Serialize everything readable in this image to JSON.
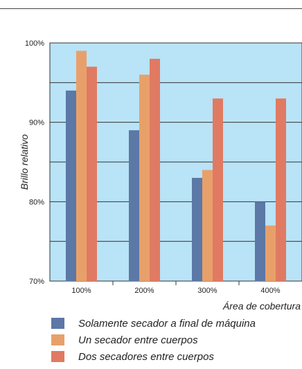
{
  "chart_data": {
    "type": "bar",
    "categories": [
      "100%",
      "200%",
      "300%",
      "400%"
    ],
    "series": [
      {
        "name": "Solamente secador a final de máquina",
        "values": [
          94,
          89,
          83,
          80
        ],
        "color": "#5b78a6"
      },
      {
        "name": "Un secador entre cuerpos",
        "values": [
          99,
          96,
          84,
          77
        ],
        "color": "#e8a06a"
      },
      {
        "name": "Dos secadores entre cuerpos",
        "values": [
          97,
          98,
          93,
          93
        ],
        "color": "#e07a62"
      }
    ],
    "ylim": [
      70,
      100
    ],
    "yticks": [
      "70%",
      "80%",
      "90%",
      "100%"
    ],
    "ytick_values": [
      70,
      80,
      90,
      100
    ],
    "xlabel": "Área de cobertura",
    "ylabel": "Brillo relativo",
    "grid": true,
    "plot_background": "#b9e3f6",
    "legend_position": "bottom"
  }
}
